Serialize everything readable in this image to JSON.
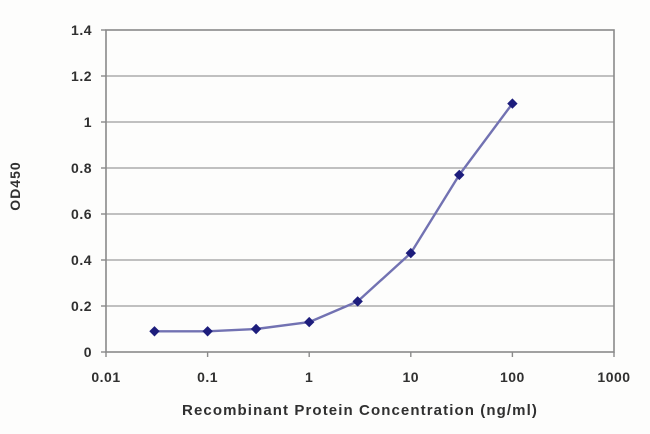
{
  "page": {
    "background_color": "#fdfdfc",
    "text_color": "#303030"
  },
  "chart_data": {
    "type": "line",
    "x_scale": "log",
    "x": [
      0.03,
      0.1,
      0.3,
      1,
      3,
      10,
      30,
      100
    ],
    "y": [
      0.09,
      0.09,
      0.1,
      0.13,
      0.22,
      0.43,
      0.77,
      1.08
    ],
    "title": "",
    "xlabel": "Recombinant Protein Concentration (ng/ml)",
    "ylabel": "OD450",
    "xlim": [
      0.01,
      1000
    ],
    "ylim": [
      0,
      1.4
    ],
    "x_ticks": [
      "0.01",
      "0.1",
      "1",
      "10",
      "100",
      "1000"
    ],
    "y_ticks": [
      "1.4",
      "1.2",
      "1",
      "0.8",
      "0.6",
      "0.4",
      "0.2",
      "0"
    ],
    "grid": "horizontal",
    "legend": "none",
    "marker_shape": "diamond",
    "line_color": "#7272b2",
    "marker_color": "#1d1d7c",
    "grid_color": "#9c9c9c",
    "frame_color": "#8a8a8a"
  }
}
